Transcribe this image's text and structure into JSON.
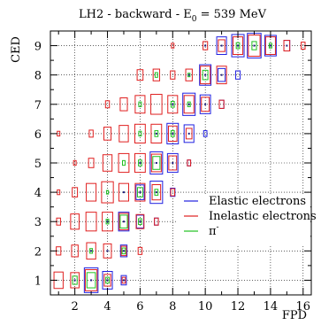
{
  "chart_data": {
    "type": "box",
    "title_main": "LH2 - backward - E",
    "title_sub": "0",
    "title_tail": " = 539 MeV",
    "xlabel": "FPD",
    "ylabel": "CED",
    "xlim": [
      0.5,
      16.5
    ],
    "ylim": [
      0.5,
      9.5
    ],
    "x_ticks": [
      2,
      4,
      6,
      8,
      10,
      12,
      14,
      16
    ],
    "y_ticks": [
      1,
      2,
      3,
      4,
      5,
      6,
      7,
      8,
      9
    ],
    "grid": true,
    "legend_position": "right-middle",
    "series": [
      {
        "name": "Elastic electrons",
        "color": "#2020e0",
        "cells": [
          [
            3,
            1,
            0.42
          ],
          [
            4,
            1,
            0.3
          ],
          [
            5,
            1,
            0.16
          ],
          [
            5,
            2,
            0.2
          ],
          [
            5,
            3,
            0.32
          ],
          [
            6,
            3,
            0.22
          ],
          [
            6,
            4,
            0.25
          ],
          [
            7,
            4,
            0.38
          ],
          [
            7,
            5,
            0.38
          ],
          [
            8,
            5,
            0.32
          ],
          [
            8,
            6,
            0.35
          ],
          [
            9,
            6,
            0.3
          ],
          [
            9,
            7,
            0.38
          ],
          [
            10,
            7,
            0.32
          ],
          [
            10,
            8,
            0.35
          ],
          [
            11,
            8,
            0.22
          ],
          [
            11,
            9,
            0.3
          ],
          [
            12,
            9,
            0.38
          ],
          [
            13,
            9,
            0.42
          ],
          [
            14,
            9,
            0.35
          ],
          [
            15,
            9,
            0.18
          ],
          [
            7,
            3,
            0.12
          ],
          [
            9,
            5,
            0.1
          ],
          [
            10,
            6,
            0.1
          ],
          [
            11,
            7,
            0.14
          ],
          [
            12,
            8,
            0.14
          ],
          [
            8,
            4,
            0.14
          ]
        ]
      },
      {
        "name": "Inelastic electrons",
        "color": "#e02020",
        "cells": [
          [
            1,
            1,
            0.28
          ],
          [
            2,
            1,
            0.26
          ],
          [
            3,
            1,
            0.36
          ],
          [
            4,
            1,
            0.2
          ],
          [
            5,
            1,
            0.1
          ],
          [
            1,
            2,
            0.14
          ],
          [
            2,
            2,
            0.2
          ],
          [
            3,
            2,
            0.28
          ],
          [
            4,
            2,
            0.24
          ],
          [
            5,
            2,
            0.16
          ],
          [
            6,
            2,
            0.12
          ],
          [
            1,
            3,
            0.12
          ],
          [
            2,
            3,
            0.26
          ],
          [
            3,
            3,
            0.32
          ],
          [
            4,
            3,
            0.32
          ],
          [
            5,
            3,
            0.28
          ],
          [
            6,
            3,
            0.24
          ],
          [
            7,
            3,
            0.12
          ],
          [
            1,
            4,
            0.08
          ],
          [
            2,
            4,
            0.16
          ],
          [
            3,
            4,
            0.3
          ],
          [
            4,
            4,
            0.36
          ],
          [
            5,
            4,
            0.3
          ],
          [
            6,
            4,
            0.3
          ],
          [
            7,
            4,
            0.26
          ],
          [
            8,
            4,
            0.12
          ],
          [
            2,
            5,
            0.08
          ],
          [
            3,
            5,
            0.16
          ],
          [
            4,
            5,
            0.28
          ],
          [
            5,
            5,
            0.32
          ],
          [
            6,
            5,
            0.32
          ],
          [
            7,
            5,
            0.3
          ],
          [
            8,
            5,
            0.24
          ],
          [
            9,
            5,
            0.1
          ],
          [
            1,
            6,
            0.08
          ],
          [
            3,
            6,
            0.12
          ],
          [
            4,
            6,
            0.22
          ],
          [
            5,
            6,
            0.28
          ],
          [
            6,
            6,
            0.32
          ],
          [
            7,
            6,
            0.32
          ],
          [
            8,
            6,
            0.26
          ],
          [
            9,
            6,
            0.18
          ],
          [
            4,
            7,
            0.12
          ],
          [
            5,
            7,
            0.22
          ],
          [
            6,
            7,
            0.3
          ],
          [
            7,
            7,
            0.34
          ],
          [
            8,
            7,
            0.3
          ],
          [
            9,
            7,
            0.3
          ],
          [
            10,
            7,
            0.24
          ],
          [
            11,
            7,
            0.14
          ],
          [
            6,
            8,
            0.18
          ],
          [
            7,
            8,
            0.2
          ],
          [
            8,
            8,
            0.14
          ],
          [
            9,
            8,
            0.2
          ],
          [
            10,
            8,
            0.3
          ],
          [
            11,
            8,
            0.3
          ],
          [
            8,
            9,
            0.08
          ],
          [
            10,
            9,
            0.14
          ],
          [
            11,
            9,
            0.2
          ],
          [
            12,
            9,
            0.3
          ],
          [
            13,
            9,
            0.36
          ],
          [
            14,
            9,
            0.3
          ],
          [
            15,
            9,
            0.18
          ],
          [
            16,
            9,
            0.12
          ]
        ]
      },
      {
        "name": "π",
        "name_sup": "-",
        "color": "#20c020",
        "cells": [
          [
            2,
            1,
            0.14
          ],
          [
            3,
            1,
            0.26
          ],
          [
            4,
            1,
            0.1
          ],
          [
            3,
            2,
            0.08
          ],
          [
            5,
            2,
            0.1
          ],
          [
            4,
            3,
            0.08
          ],
          [
            5,
            3,
            0.22
          ],
          [
            6,
            3,
            0.1
          ],
          [
            4,
            4,
            0.06
          ],
          [
            6,
            4,
            0.16
          ],
          [
            7,
            4,
            0.1
          ],
          [
            5,
            5,
            0.08
          ],
          [
            6,
            5,
            0.1
          ],
          [
            7,
            5,
            0.22
          ],
          [
            6,
            6,
            0.08
          ],
          [
            7,
            6,
            0.1
          ],
          [
            8,
            6,
            0.1
          ],
          [
            6,
            7,
            0.08
          ],
          [
            8,
            7,
            0.1
          ],
          [
            9,
            7,
            0.08
          ],
          [
            7,
            8,
            0.08
          ],
          [
            9,
            8,
            0.06
          ],
          [
            10,
            8,
            0.16
          ],
          [
            12,
            9,
            0.1
          ],
          [
            13,
            9,
            0.14
          ],
          [
            14,
            9,
            0.08
          ]
        ]
      }
    ],
    "dots": [
      [
        11,
        9
      ],
      [
        13,
        9
      ],
      [
        12,
        9
      ],
      [
        10,
        9
      ],
      [
        14,
        9
      ],
      [
        15,
        9
      ],
      [
        10,
        8
      ],
      [
        11,
        8
      ],
      [
        9,
        8
      ],
      [
        9,
        7
      ],
      [
        10,
        7
      ],
      [
        8,
        7
      ],
      [
        8,
        6
      ],
      [
        9,
        6
      ],
      [
        7,
        6
      ],
      [
        7,
        5
      ],
      [
        8,
        5
      ],
      [
        6,
        5
      ],
      [
        6,
        4
      ],
      [
        7,
        4
      ],
      [
        5,
        4
      ],
      [
        5,
        3
      ],
      [
        6,
        3
      ],
      [
        4,
        3
      ],
      [
        4,
        2
      ],
      [
        5,
        2
      ],
      [
        3,
        2
      ],
      [
        3,
        1
      ],
      [
        4,
        1
      ],
      [
        2,
        1
      ],
      [
        5,
        1
      ]
    ]
  }
}
